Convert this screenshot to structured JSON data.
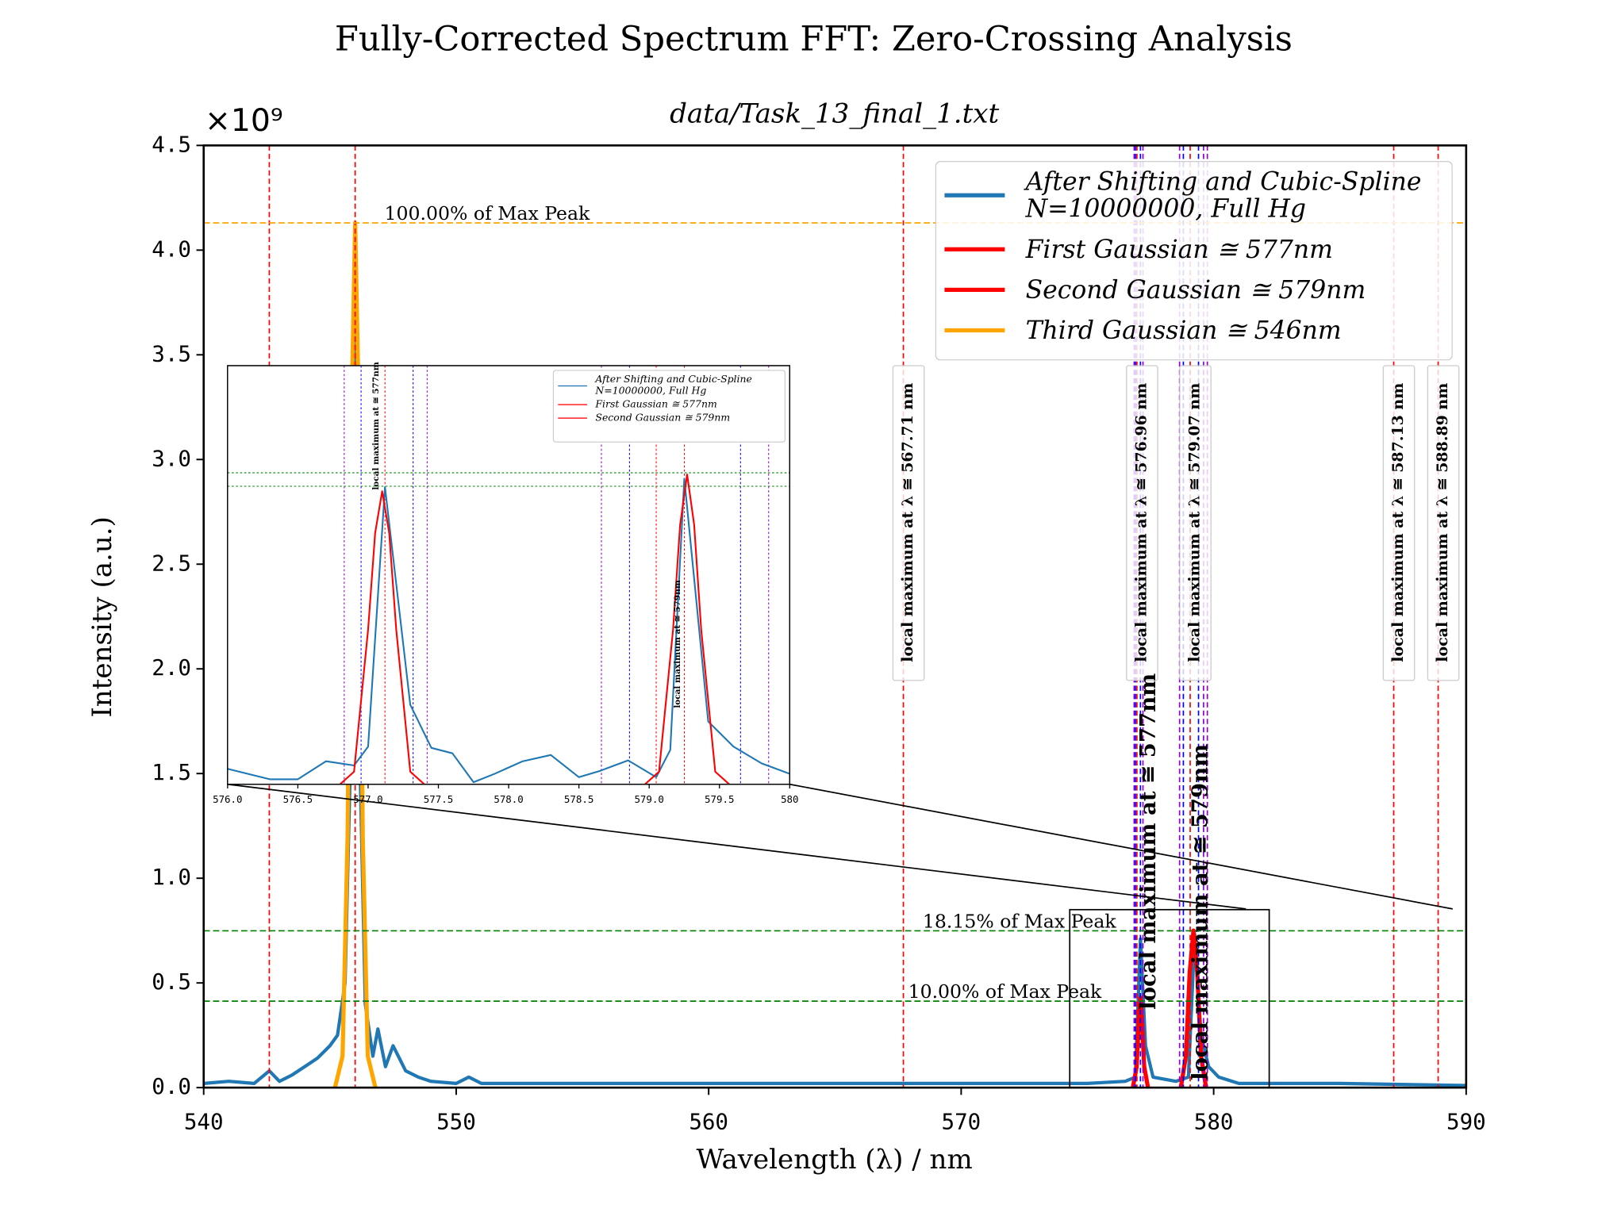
{
  "chart_data": {
    "type": "line",
    "title": "Fully-Corrected Spectrum FFT: Zero-Crossing Analysis",
    "subtitle": "data/Task_13_final_1.txt",
    "offset_text": "×10⁹",
    "x_label": "Wavelength (λ) / nm",
    "y_label": "Intensity (a.u.)",
    "xlim": [
      540,
      590
    ],
    "xticks": [
      540,
      550,
      560,
      570,
      580,
      590
    ],
    "ylim": [
      0,
      4.5
    ],
    "yticks": [
      {
        "value": 0,
        "label": "0.0"
      },
      0.5,
      {
        "value": 1,
        "label": "1.0"
      },
      1.5,
      {
        "value": 2,
        "label": "2.0"
      },
      2.5,
      {
        "value": 3,
        "label": "3.0"
      },
      3.5,
      {
        "value": 4,
        "label": "4.0"
      },
      4.5
    ],
    "series": [
      {
        "name": "After Shifting and Cubic-Spline\nN=10000000, Full Hg",
        "color": "#1f77b4",
        "x": [
          540,
          541,
          542,
          542.6,
          543,
          543.5,
          544,
          544.5,
          545,
          545.3,
          545.6,
          545.8,
          546.0,
          546.2,
          546.4,
          546.7,
          546.9,
          547.2,
          547.5,
          548,
          548.5,
          549,
          550,
          550.5,
          551,
          555,
          560,
          565,
          570,
          575,
          576.5,
          576.9,
          577.1,
          577.3,
          577.6,
          578.5,
          579.0,
          579.25,
          579.5,
          579.8,
          580.2,
          581,
          585,
          590
        ],
        "values": [
          0.02,
          0.03,
          0.02,
          0.08,
          0.03,
          0.06,
          0.1,
          0.14,
          0.2,
          0.25,
          0.5,
          1.5,
          4.13,
          1.5,
          0.4,
          0.15,
          0.28,
          0.1,
          0.2,
          0.08,
          0.05,
          0.03,
          0.02,
          0.05,
          0.02,
          0.02,
          0.02,
          0.02,
          0.02,
          0.02,
          0.03,
          0.05,
          0.71,
          0.2,
          0.05,
          0.03,
          0.05,
          0.73,
          0.25,
          0.1,
          0.05,
          0.02,
          0.02,
          0.01
        ]
      },
      {
        "name": "First Gaussian ≅ 577nm",
        "color": "#ff0000",
        "x": [
          576.8,
          576.95,
          577.05,
          577.1,
          577.15,
          577.25,
          577.4
        ],
        "values": [
          0,
          0.1,
          0.35,
          0.43,
          0.35,
          0.1,
          0
        ]
      },
      {
        "name": "Second Gaussian ≅ 579nm",
        "color": "#ff0000",
        "x": [
          578.7,
          578.9,
          579.05,
          579.2,
          579.35,
          579.5,
          579.7
        ],
        "values": [
          0,
          0.15,
          0.55,
          0.75,
          0.55,
          0.15,
          0
        ]
      },
      {
        "name": "Third Gaussian ≅ 546nm",
        "color": "#ffa500",
        "x": [
          545.2,
          545.5,
          545.7,
          545.85,
          546.0,
          546.15,
          546.3,
          546.5,
          546.8
        ],
        "values": [
          0,
          0.15,
          1.2,
          3.2,
          4.13,
          3.2,
          1.2,
          0.15,
          0
        ]
      }
    ],
    "vlines": [
      {
        "x": 542.6,
        "color": "#ff0000"
      },
      {
        "x": 546.0,
        "color": "#ff0000"
      },
      {
        "x": 567.71,
        "color": "#ff0000",
        "label": "local maximum at λ ≅ 567.71 nm"
      },
      {
        "x": 576.85,
        "color": "#9400d3"
      },
      {
        "x": 576.9,
        "color": "#0000ff"
      },
      {
        "x": 576.96,
        "color": "#ff0000",
        "label": "local maximum at λ ≅ 576.96 nm"
      },
      {
        "x": 577.1,
        "color": "#0000ff"
      },
      {
        "x": 577.2,
        "color": "#9400d3"
      },
      {
        "x": 578.65,
        "color": "#9400d3"
      },
      {
        "x": 578.8,
        "color": "#0000ff"
      },
      {
        "x": 579.07,
        "color": "#ff0000",
        "label": "local maximum at λ ≅ 579.07 nm"
      },
      {
        "x": 579.4,
        "color": "#0000ff"
      },
      {
        "x": 579.6,
        "color": "#9400d3"
      },
      {
        "x": 579.75,
        "color": "#9400d3"
      },
      {
        "x": 587.13,
        "color": "#ff0000",
        "label": "local maximum at λ ≅ 587.13 nm"
      },
      {
        "x": 588.89,
        "color": "#ff0000",
        "label": "local maximum at λ ≅ 588.89 nm"
      }
    ],
    "hlines": [
      {
        "y": 4.13,
        "color": "#ffa500",
        "label": "100.00% of Max Peak"
      },
      {
        "y": 0.749,
        "color": "#008000",
        "label": "18.15% of Max Peak"
      },
      {
        "y": 0.413,
        "color": "#008000",
        "label": "10.00% of Max Peak"
      }
    ],
    "annotations": [
      {
        "text": "local maximum at ≅ 577nm"
      },
      {
        "text": "local maximum at ≅ 579nm"
      }
    ],
    "zoom_box": {
      "xlim": [
        574.3,
        582.2
      ],
      "ylim": [
        0,
        0.85
      ]
    },
    "inset": {
      "type": "line",
      "xlim": [
        576,
        580
      ],
      "xticks": [
        {
          "value": 576,
          "label": "576.0"
        },
        576.5,
        {
          "value": 577,
          "label": "577.0"
        },
        577.5,
        {
          "value": 578,
          "label": "578.0"
        },
        578.5,
        {
          "value": 579,
          "label": "579.0"
        },
        579.5,
        580
      ],
      "ylim": [
        0,
        1
      ],
      "series": [
        {
          "name": "After Shifting and Cubic-Spline\nN=10000000, Full Hg",
          "color": "#1f77b4",
          "x": [
            576.0,
            576.3,
            576.5,
            576.7,
            576.9,
            577.0,
            577.12,
            577.3,
            577.45,
            577.6,
            577.75,
            577.9,
            578.1,
            578.3,
            578.5,
            578.65,
            578.85,
            579.05,
            579.15,
            579.25,
            579.42,
            579.6,
            579.8,
            580
          ],
          "values": [
            0.037,
            0.012,
            0.012,
            0.055,
            0.045,
            0.09,
            0.71,
            0.19,
            0.087,
            0.074,
            0.005,
            0.025,
            0.055,
            0.07,
            0.017,
            0.032,
            0.057,
            0.017,
            0.082,
            0.73,
            0.15,
            0.09,
            0.05,
            0.025
          ]
        },
        {
          "name": "First Gaussian ≅ 577nm",
          "color": "#ff0000",
          "x": [
            576.8,
            576.9,
            577.0,
            577.05,
            577.1,
            577.15,
            577.2,
            577.3,
            577.4
          ],
          "values": [
            0,
            0.03,
            0.37,
            0.6,
            0.7,
            0.6,
            0.37,
            0.03,
            0
          ]
        },
        {
          "name": "Second Gaussian ≅ 579nm",
          "color": "#ff0000",
          "x": [
            578.97,
            579.07,
            579.17,
            579.22,
            579.27,
            579.32,
            579.37,
            579.47,
            579.57
          ],
          "values": [
            0,
            0.03,
            0.37,
            0.62,
            0.74,
            0.62,
            0.37,
            0.03,
            0
          ]
        }
      ],
      "vlines": [
        {
          "x": 576.83,
          "color": "#9400d3"
        },
        {
          "x": 576.95,
          "color": "#0000ff"
        },
        {
          "x": 577.12,
          "color": "#ff0000"
        },
        {
          "x": 577.32,
          "color": "#0000ff"
        },
        {
          "x": 577.42,
          "color": "#9400d3"
        },
        {
          "x": 578.66,
          "color": "#9400d3"
        },
        {
          "x": 578.86,
          "color": "#0000ff"
        },
        {
          "x": 579.05,
          "color": "#ff0000"
        },
        {
          "x": 579.25,
          "color": "#ff0000"
        },
        {
          "x": 579.65,
          "color": "#0000ff"
        },
        {
          "x": 579.85,
          "color": "#9400d3"
        }
      ],
      "hlines": [
        {
          "y": 0.744,
          "color": "#008000"
        },
        {
          "y": 0.712,
          "color": "#008000"
        }
      ],
      "annotations": [
        {
          "text": "local maximum at ≅ 577nm"
        },
        {
          "text": "local maximum at ≅ 579nm"
        }
      ]
    }
  }
}
